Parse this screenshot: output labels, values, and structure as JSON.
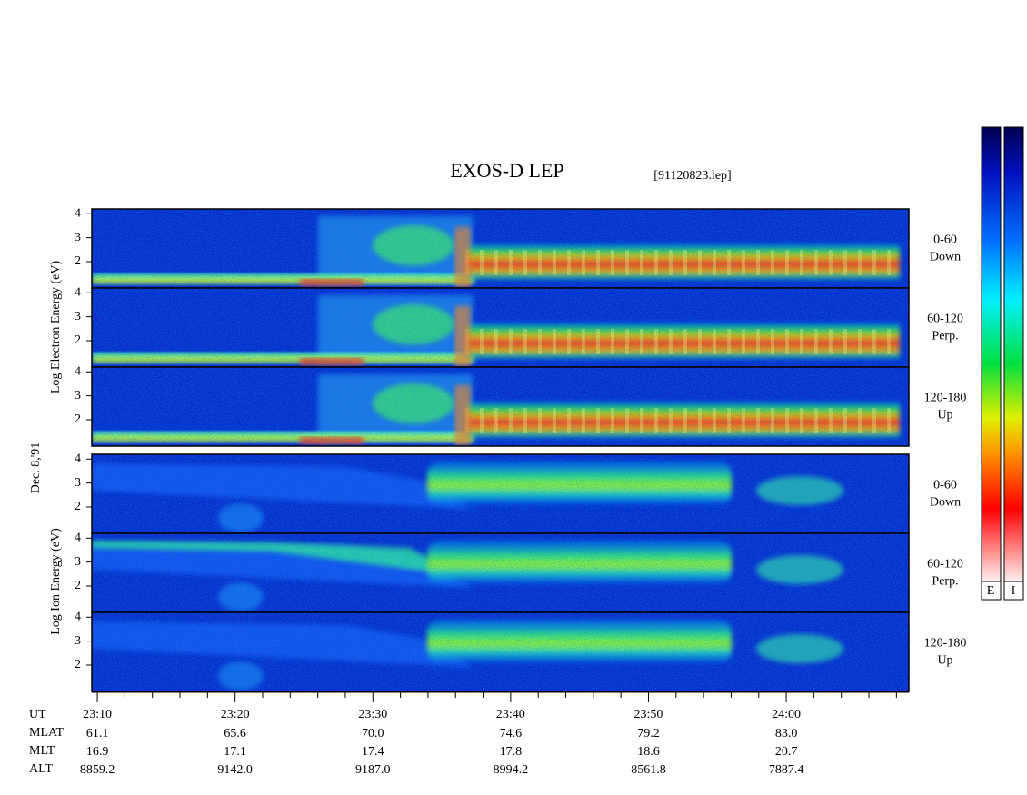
{
  "title": "EXOS-D LEP",
  "file": "[91120823.lep]",
  "date": "Dec. 8,'91",
  "colorbar_labels": [
    "E",
    "I"
  ],
  "chart_data": {
    "type": "spectrogram",
    "ylabels": [
      "Log Electron Energy (eV)",
      "Log Ion Energy (eV)"
    ],
    "panels": [
      {
        "group": 0,
        "label": [
          "0-60",
          "Down"
        ]
      },
      {
        "group": 0,
        "label": [
          "60-120",
          "Perp."
        ]
      },
      {
        "group": 0,
        "label": [
          "120-180",
          "Up"
        ]
      },
      {
        "group": 1,
        "label": [
          "0-60",
          "Down"
        ]
      },
      {
        "group": 1,
        "label": [
          "60-120",
          "Perp."
        ]
      },
      {
        "group": 1,
        "label": [
          "120-180",
          "Up"
        ]
      }
    ],
    "ylim": [
      0.9,
      4.2
    ],
    "yticks": [
      2,
      3,
      4
    ],
    "xlim": [
      9.6,
      68.9
    ],
    "xticks": [
      {
        "value": 10,
        "label": "23:10"
      },
      {
        "value": 20,
        "label": "23:20"
      },
      {
        "value": 30,
        "label": "23:30"
      },
      {
        "value": 40,
        "label": "23:40"
      },
      {
        "value": 50,
        "label": "23:50"
      },
      {
        "value": 60,
        "label": "24:00"
      }
    ],
    "xminorticks": [
      12,
      14,
      16,
      18,
      22,
      24,
      26,
      28,
      32,
      34,
      36,
      38,
      42,
      44,
      46,
      48,
      52,
      54,
      56,
      58,
      62,
      64,
      66,
      68
    ],
    "orbit_names": [
      "UT",
      "MLAT",
      "MLT",
      "ALT"
    ],
    "orbit": [
      [
        "61.1",
        "65.6",
        "70.0",
        "74.6",
        "79.2",
        "83.0"
      ],
      [
        "16.9",
        "17.1",
        "17.4",
        "17.8",
        "18.6",
        "20.7"
      ],
      [
        "8859.2",
        "9142.0",
        "9187.0",
        "8994.2",
        "8561.8",
        "7887.4"
      ]
    ]
  }
}
